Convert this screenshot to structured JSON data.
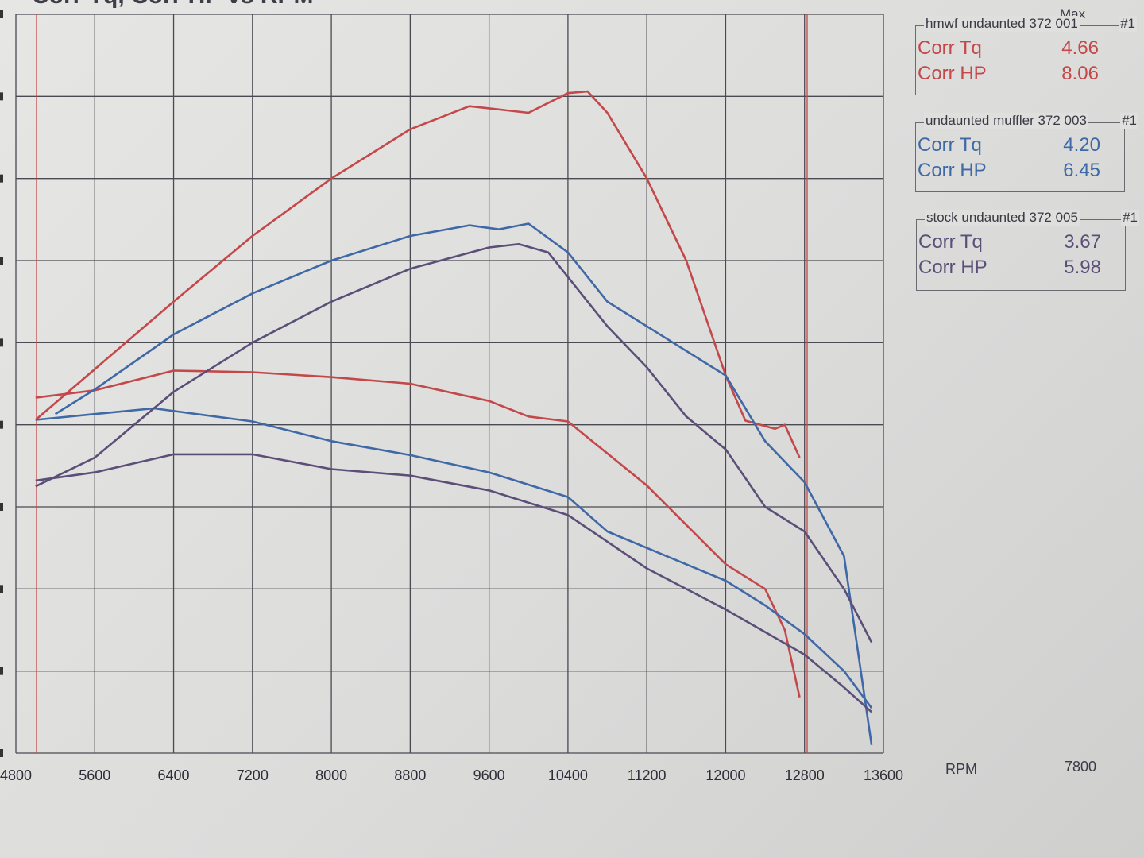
{
  "title": "Corr Tq, Corr HP vs RPM",
  "x_axis_label": "RPM",
  "corner_value": "7800",
  "legend_max_header": "Max",
  "runs": [
    {
      "name": "hmwf undaunted 372 001",
      "run": "#1",
      "color": "#c4474a",
      "rows": [
        {
          "label": "Corr Tq",
          "value": "4.66"
        },
        {
          "label": "Corr HP",
          "value": "8.06"
        }
      ]
    },
    {
      "name": "undaunted muffler 372 003",
      "run": "#1",
      "color": "#3f68a6",
      "rows": [
        {
          "label": "Corr Tq",
          "value": "4.20"
        },
        {
          "label": "Corr HP",
          "value": "6.45"
        }
      ]
    },
    {
      "name": "stock undaunted 372 005",
      "run": "#1",
      "color": "#5b4f78",
      "rows": [
        {
          "label": "Corr Tq",
          "value": "3.67"
        },
        {
          "label": "Corr HP",
          "value": "5.98"
        }
      ]
    }
  ],
  "chart_data": {
    "type": "line",
    "title": "Corr Tq, Corr HP vs RPM",
    "xlabel": "RPM",
    "ylabel": "",
    "xlim": [
      4800,
      13600
    ],
    "ylim": [
      0,
      9
    ],
    "x_ticks": [
      4800,
      5600,
      6400,
      7200,
      8000,
      8800,
      9600,
      10400,
      11200,
      12000,
      12800,
      13600
    ],
    "grid": true,
    "legend_position": "right",
    "series": [
      {
        "name": "hmwf undaunted 372 001 Corr HP",
        "color": "#c4474a",
        "points": [
          [
            5000,
            4.06
          ],
          [
            6400,
            5.5
          ],
          [
            7200,
            6.3
          ],
          [
            8000,
            7.0
          ],
          [
            8800,
            7.6
          ],
          [
            9400,
            7.88
          ],
          [
            10000,
            7.8
          ],
          [
            10400,
            8.04
          ],
          [
            10600,
            8.06
          ],
          [
            10800,
            7.8
          ],
          [
            11200,
            7.0
          ],
          [
            11600,
            6.0
          ],
          [
            12000,
            4.6
          ],
          [
            12200,
            4.05
          ],
          [
            12500,
            3.95
          ],
          [
            12600,
            4.0
          ],
          [
            12750,
            3.6
          ]
        ]
      },
      {
        "name": "hmwf undaunted 372 001 Corr Tq",
        "color": "#c4474a",
        "points": [
          [
            5000,
            4.33
          ],
          [
            5600,
            4.42
          ],
          [
            6400,
            4.66
          ],
          [
            7200,
            4.64
          ],
          [
            8000,
            4.58
          ],
          [
            8800,
            4.5
          ],
          [
            9600,
            4.29
          ],
          [
            10000,
            4.1
          ],
          [
            10400,
            4.04
          ],
          [
            11200,
            3.26
          ],
          [
            12000,
            2.3
          ],
          [
            12400,
            2.0
          ],
          [
            12600,
            1.5
          ],
          [
            12750,
            0.68
          ]
        ]
      },
      {
        "name": "undaunted muffler 372 003 Corr HP",
        "color": "#3f68a6",
        "points": [
          [
            5200,
            4.13
          ],
          [
            5600,
            4.43
          ],
          [
            6400,
            5.1
          ],
          [
            7200,
            5.6
          ],
          [
            8000,
            6.0
          ],
          [
            8800,
            6.3
          ],
          [
            9400,
            6.43
          ],
          [
            9700,
            6.38
          ],
          [
            10000,
            6.45
          ],
          [
            10400,
            6.1
          ],
          [
            10800,
            5.5
          ],
          [
            11200,
            5.2
          ],
          [
            11600,
            4.9
          ],
          [
            12000,
            4.6
          ],
          [
            12400,
            3.8
          ],
          [
            12800,
            3.3
          ],
          [
            13200,
            2.4
          ],
          [
            13480,
            0.1
          ]
        ]
      },
      {
        "name": "undaunted muffler 372 003 Corr Tq",
        "color": "#3f68a6",
        "points": [
          [
            5000,
            4.06
          ],
          [
            5600,
            4.13
          ],
          [
            6200,
            4.2
          ],
          [
            7200,
            4.04
          ],
          [
            8000,
            3.8
          ],
          [
            8800,
            3.63
          ],
          [
            9600,
            3.42
          ],
          [
            10400,
            3.12
          ],
          [
            10800,
            2.7
          ],
          [
            11200,
            2.5
          ],
          [
            12000,
            2.1
          ],
          [
            12400,
            1.8
          ],
          [
            12800,
            1.45
          ],
          [
            13200,
            1.0
          ],
          [
            13480,
            0.55
          ]
        ]
      },
      {
        "name": "stock undaunted 372 005 Corr HP",
        "color": "#5b4f78",
        "points": [
          [
            5000,
            3.25
          ],
          [
            5600,
            3.6
          ],
          [
            6400,
            4.4
          ],
          [
            7200,
            5.0
          ],
          [
            8000,
            5.5
          ],
          [
            8800,
            5.9
          ],
          [
            9600,
            6.16
          ],
          [
            9900,
            6.2
          ],
          [
            10200,
            6.1
          ],
          [
            10800,
            5.2
          ],
          [
            11200,
            4.7
          ],
          [
            11600,
            4.1
          ],
          [
            12000,
            3.7
          ],
          [
            12400,
            3.0
          ],
          [
            12800,
            2.7
          ],
          [
            13200,
            2.0
          ],
          [
            13480,
            1.35
          ]
        ]
      },
      {
        "name": "stock undaunted 372 005 Corr Tq",
        "color": "#5b4f78",
        "points": [
          [
            5000,
            3.32
          ],
          [
            5600,
            3.42
          ],
          [
            6400,
            3.64
          ],
          [
            7200,
            3.64
          ],
          [
            8000,
            3.46
          ],
          [
            8800,
            3.38
          ],
          [
            9600,
            3.2
          ],
          [
            10400,
            2.9
          ],
          [
            11200,
            2.25
          ],
          [
            12000,
            1.75
          ],
          [
            12800,
            1.2
          ],
          [
            13200,
            0.8
          ],
          [
            13480,
            0.5
          ]
        ]
      }
    ]
  }
}
